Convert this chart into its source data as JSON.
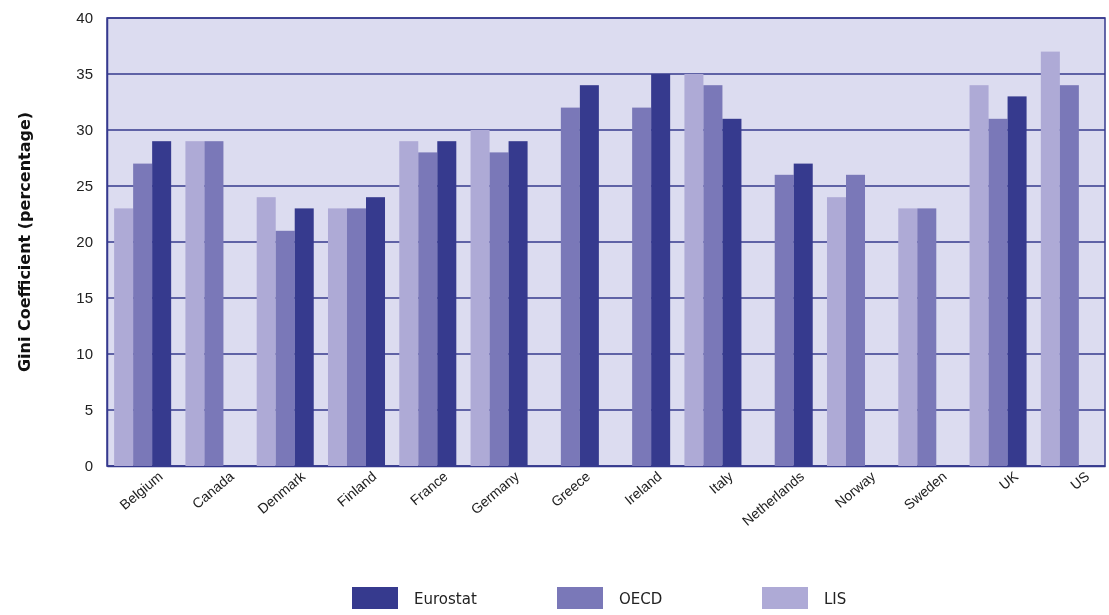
{
  "chart_data": {
    "type": "bar",
    "ylabel": "Gini Coefficient (percentage)",
    "categories": [
      "Belgium",
      "Canada",
      "Denmark",
      "Finland",
      "France",
      "Germany",
      "Greece",
      "Ireland",
      "Italy",
      "Netherlands",
      "Norway",
      "Sweden",
      "UK",
      "US"
    ],
    "series": [
      {
        "name": "LIS",
        "color": "#aeaad6",
        "values": [
          23,
          29,
          24,
          23,
          29,
          30,
          null,
          null,
          35,
          null,
          24,
          23,
          34,
          37
        ]
      },
      {
        "name": "OECD",
        "color": "#7a78b8",
        "values": [
          27,
          29,
          21,
          23,
          28,
          28,
          32,
          32,
          34,
          26,
          26,
          23,
          31,
          34
        ]
      },
      {
        "name": "Eurostat",
        "color": "#363a8e",
        "values": [
          29,
          null,
          23,
          24,
          29,
          29,
          34,
          35,
          31,
          27,
          null,
          null,
          33,
          null
        ]
      }
    ],
    "ylim": [
      0,
      40
    ],
    "yticks": [
      0,
      5,
      10,
      15,
      20,
      25,
      30,
      35,
      40
    ],
    "grid": "y",
    "legend": "bottom"
  }
}
